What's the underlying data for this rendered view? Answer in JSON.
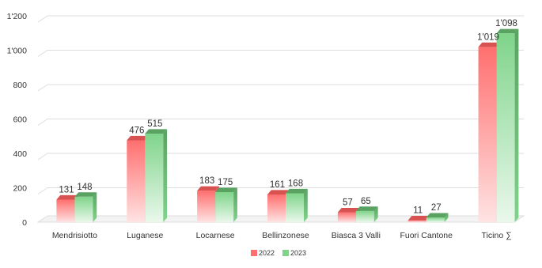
{
  "chart_data": {
    "type": "bar",
    "title": "",
    "xlabel": "",
    "ylabel": "",
    "ylim": [
      0,
      1200
    ],
    "yticks": [
      "0",
      "200",
      "400",
      "600",
      "800",
      "1'000",
      "1'200"
    ],
    "ytick_values": [
      0,
      200,
      400,
      600,
      800,
      1000,
      1200
    ],
    "categories": [
      "Mendrisiotto",
      "Luganese",
      "Locarnese",
      "Bellinzonese",
      "Biasca 3 Valli",
      "Fuori Cantone",
      "Ticino ∑"
    ],
    "series": [
      {
        "name": "2022",
        "values": [
          131,
          476,
          183,
          161,
          57,
          11,
          1019
        ],
        "labels": [
          "131",
          "476",
          "183",
          "161",
          "57",
          "11",
          "1'019"
        ],
        "color": "#ff6f6f",
        "light_color": "#ffe3e3",
        "top_color": "#d95252"
      },
      {
        "name": "2023",
        "values": [
          148,
          515,
          175,
          168,
          65,
          27,
          1098
        ],
        "labels": [
          "148",
          "515",
          "175",
          "168",
          "65",
          "27",
          "1'098"
        ],
        "color": "#7fd48a",
        "light_color": "#eaf8ec",
        "top_color": "#5aa262"
      }
    ],
    "grid": true,
    "legend_position": "bottom-center",
    "style": "3d-bar-with-gradients"
  }
}
